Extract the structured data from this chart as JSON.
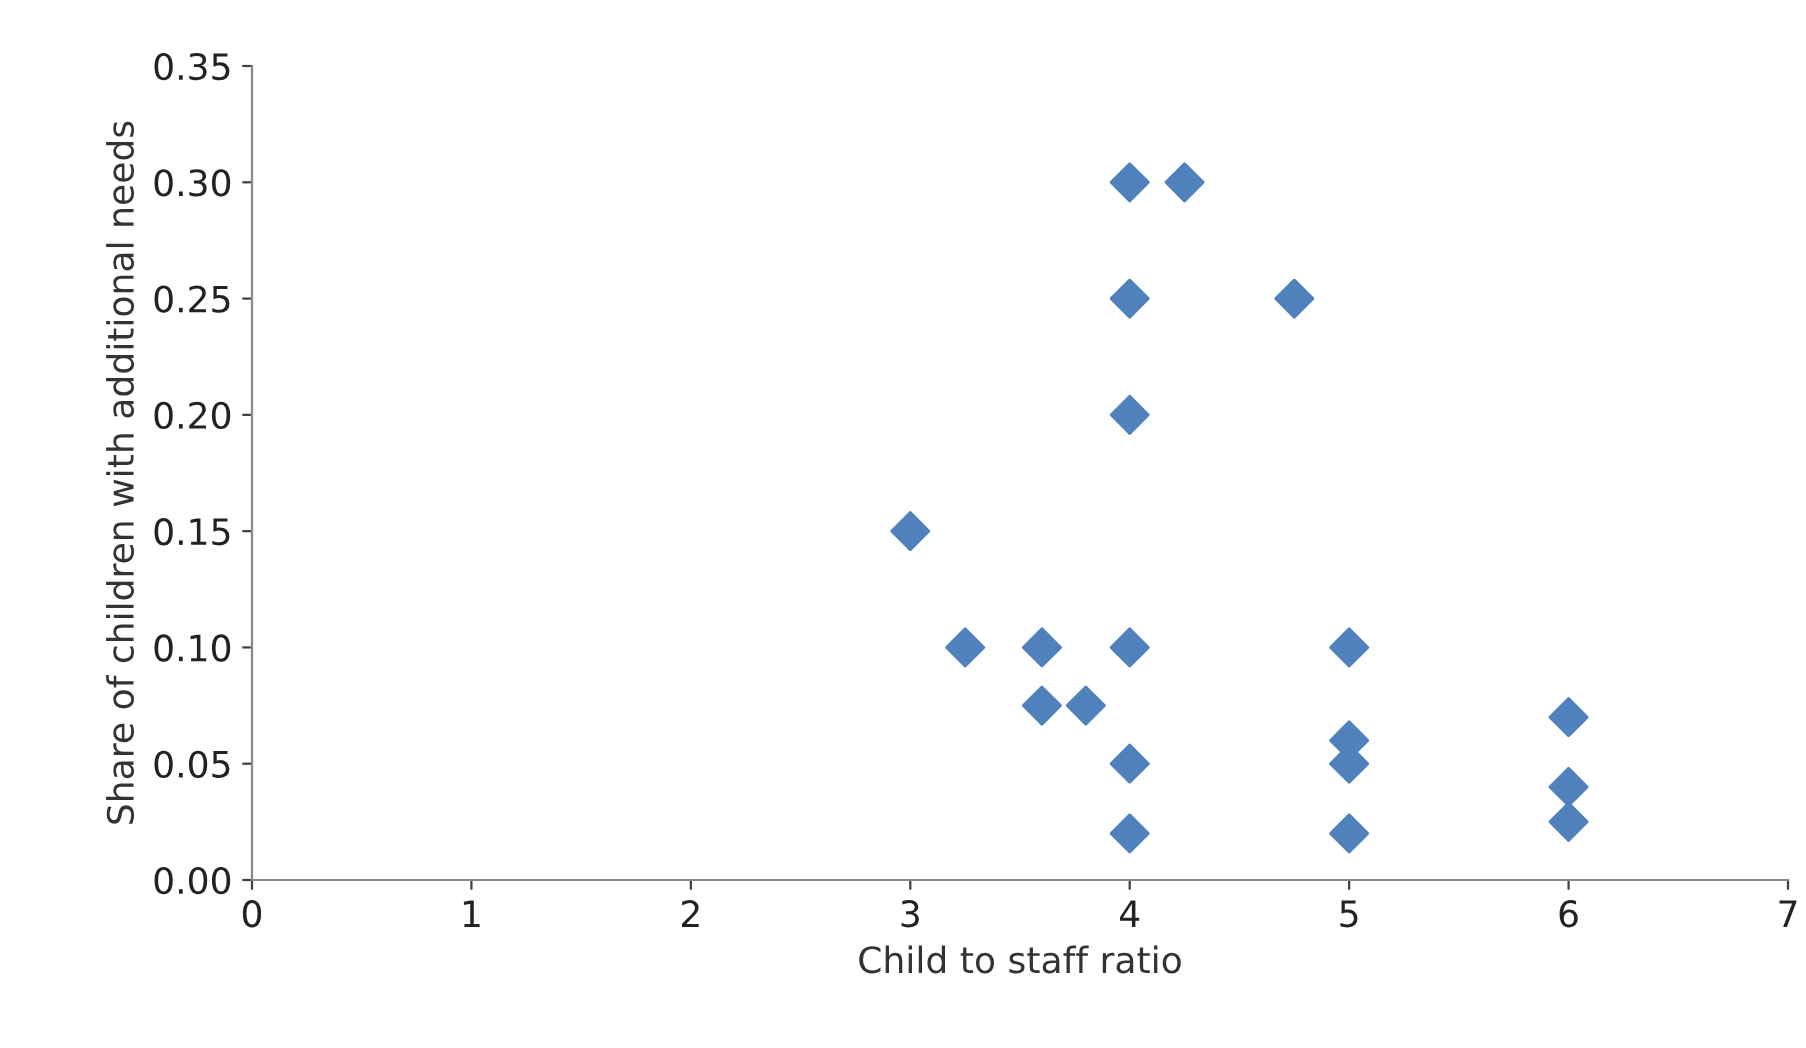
{
  "chart_data": {
    "type": "scatter",
    "xlabel": "Child to staff ratio",
    "ylabel": "Share of children with additional needs",
    "x": [
      4,
      4.25,
      4,
      4.75,
      4,
      3,
      3.25,
      3.6,
      4,
      5,
      3.6,
      3.8,
      4,
      4,
      5,
      5,
      5,
      6,
      6,
      6
    ],
    "series": [
      {
        "color": "#4f81bd",
        "values": [
          0.3,
          0.3,
          0.25,
          0.25,
          0.2,
          0.15,
          0.1,
          0.1,
          0.1,
          0.1,
          0.075,
          0.075,
          0.05,
          0.02,
          0.06,
          0.05,
          0.02,
          0.07,
          0.04,
          0.025
        ]
      }
    ],
    "xlim": [
      0,
      7
    ],
    "xticks": [
      0,
      1,
      2,
      3,
      4,
      5,
      6,
      7
    ],
    "ylim": [
      0,
      0.35
    ],
    "yticks": [
      {
        "value": 0,
        "label": "0.00"
      },
      {
        "value": 0.05,
        "label": "0.05"
      },
      {
        "value": 0.1,
        "label": "0.10"
      },
      {
        "value": 0.15,
        "label": "0.15"
      },
      {
        "value": 0.2,
        "label": "0.20"
      },
      {
        "value": 0.25,
        "label": "0.25"
      },
      {
        "value": 0.3,
        "label": "0.30"
      },
      {
        "value": 0.35,
        "label": "0.35"
      }
    ],
    "grid": false,
    "marker": "diamond"
  }
}
